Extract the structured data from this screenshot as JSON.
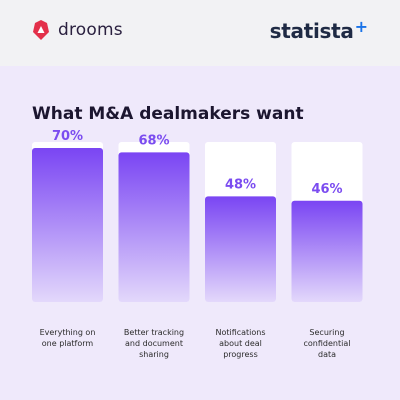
{
  "header": {
    "left_brand": "drooms",
    "right_brand": "statista",
    "right_brand_mark": "+",
    "left_icon": "drooms-logo-icon"
  },
  "colors": {
    "background": "#efe9fb",
    "card": "#ffffff",
    "bar_top": "#7a45f3",
    "bar_bottom": "#e3d8fb",
    "value_text": "#7b4cf0"
  },
  "chart_data": {
    "type": "bar",
    "title": "What M&A dealmakers want",
    "categories": [
      [
        "Everything on",
        "one platform"
      ],
      [
        "Better tracking",
        "and document",
        "sharing"
      ],
      [
        "Notifications",
        "about deal",
        "progress"
      ],
      [
        "Securing",
        "confidential",
        "data"
      ]
    ],
    "values": [
      70,
      68,
      48,
      46
    ],
    "value_labels": [
      "70%",
      "68%",
      "48%",
      "46%"
    ],
    "unit": "%",
    "ylim": [
      0,
      100
    ],
    "grid": false,
    "legend": "none"
  }
}
